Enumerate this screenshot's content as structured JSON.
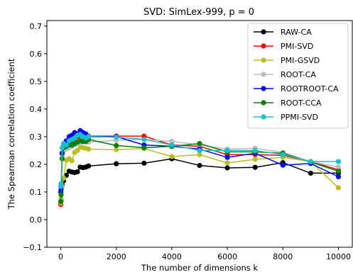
{
  "chart_data": {
    "type": "line",
    "title": "SVD: SimLex-999, p = 0",
    "xlabel": "The number of dimensions k",
    "ylabel": "The Spearman correlation coefficient",
    "xlim": [
      -500,
      10500
    ],
    "ylim": [
      -0.1,
      0.72
    ],
    "xticks": [
      0,
      2000,
      4000,
      6000,
      8000,
      10000
    ],
    "xtick_labels": [
      "0",
      "2000",
      "4000",
      "6000",
      "8000",
      "10000"
    ],
    "yticks": [
      -0.1,
      0.0,
      0.1,
      0.2,
      0.3,
      0.4,
      0.5,
      0.6,
      0.7
    ],
    "ytick_labels": [
      "−0.1",
      "0.0",
      "0.1",
      "0.2",
      "0.3",
      "0.4",
      "0.5",
      "0.6",
      "0.7"
    ],
    "grid": false,
    "legend_position": "top-right",
    "x": [
      1,
      10,
      50,
      100,
      200,
      300,
      400,
      500,
      600,
      700,
      800,
      900,
      1000,
      2000,
      3000,
      4000,
      5000,
      6000,
      7000,
      8000,
      9000,
      10000
    ],
    "series": [
      {
        "name": "RAW-CA",
        "color": "#000000",
        "values": [
          0.055,
          0.07,
          0.125,
          0.14,
          0.16,
          0.175,
          0.172,
          0.17,
          0.173,
          0.19,
          0.188,
          0.19,
          0.194,
          0.202,
          0.204,
          0.22,
          0.196,
          0.187,
          0.189,
          0.206,
          0.168,
          0.168
        ]
      },
      {
        "name": "PMI-SVD",
        "color": "#ff0000",
        "values": [
          0.055,
          0.1,
          0.24,
          0.26,
          0.27,
          0.28,
          0.285,
          0.29,
          0.3,
          0.305,
          0.3,
          0.3,
          0.302,
          0.302,
          0.302,
          0.27,
          0.265,
          0.235,
          0.235,
          0.232,
          0.21,
          0.18
        ]
      },
      {
        "name": "PMI-GSVD",
        "color": "#bcbd22",
        "values": [
          0.06,
          0.075,
          0.12,
          0.15,
          0.215,
          0.22,
          0.213,
          0.243,
          0.25,
          0.262,
          0.26,
          0.258,
          0.255,
          0.253,
          0.257,
          0.228,
          0.235,
          0.205,
          0.218,
          0.225,
          0.21,
          0.115
        ]
      },
      {
        "name": "ROOT-CA",
        "color": "#bbbbbb",
        "values": [
          0.07,
          0.1,
          0.23,
          0.25,
          0.255,
          0.26,
          0.265,
          0.27,
          0.275,
          0.278,
          0.28,
          0.282,
          0.28,
          0.287,
          0.29,
          0.283,
          0.27,
          0.255,
          0.258,
          0.243,
          0.21,
          0.19
        ]
      },
      {
        "name": "ROOTROOT-CA",
        "color": "#0000ff",
        "values": [
          0.1,
          0.11,
          0.24,
          0.265,
          0.285,
          0.3,
          0.305,
          0.315,
          0.31,
          0.322,
          0.315,
          0.31,
          0.3,
          0.3,
          0.27,
          0.265,
          0.255,
          0.225,
          0.24,
          0.197,
          0.203,
          0.155
        ]
      },
      {
        "name": "ROOT-CCA",
        "color": "#008000",
        "values": [
          0.065,
          0.09,
          0.22,
          0.26,
          0.265,
          0.27,
          0.27,
          0.275,
          0.28,
          0.285,
          0.283,
          0.282,
          0.29,
          0.268,
          0.26,
          0.265,
          0.275,
          0.245,
          0.245,
          0.24,
          0.208,
          0.175
        ]
      },
      {
        "name": "PPMI-SVD",
        "color": "#17becf",
        "values": [
          0.12,
          0.13,
          0.26,
          0.275,
          0.27,
          0.285,
          0.29,
          0.295,
          0.305,
          0.308,
          0.3,
          0.295,
          0.3,
          0.298,
          0.29,
          0.27,
          0.25,
          0.25,
          0.25,
          0.235,
          0.21,
          0.21
        ]
      }
    ]
  }
}
